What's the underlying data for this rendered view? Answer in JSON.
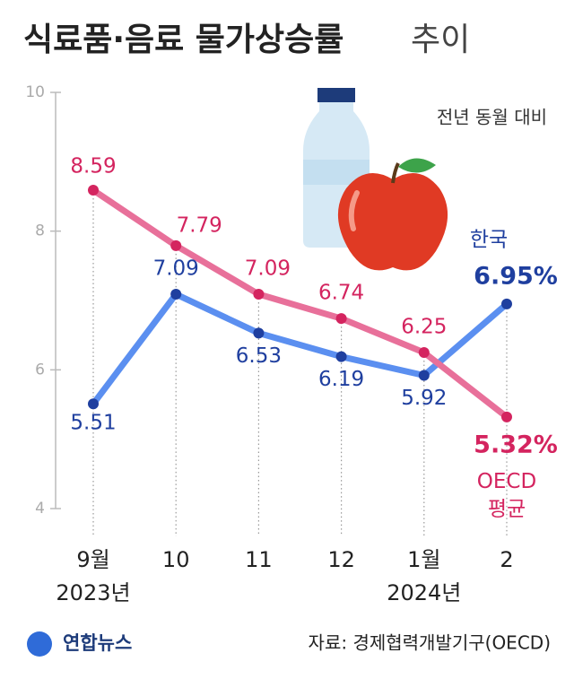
{
  "chart_data": {
    "type": "line",
    "title": "식료품·음료 물가상승률",
    "title_suffix": "추이",
    "subtitle": "전년 동월 대비",
    "categories": [
      "9월",
      "10",
      "11",
      "12",
      "1월",
      "2"
    ],
    "year_labels": [
      "2023년",
      null,
      null,
      null,
      "2024년",
      null
    ],
    "series": [
      {
        "name": "한국",
        "color": "#5b8ff0",
        "label_color": "#1f3f9f",
        "values": [
          5.51,
          7.09,
          6.53,
          6.19,
          5.92,
          6.95
        ],
        "value_labels": [
          "5.51",
          "7.09",
          "6.53",
          "6.19",
          "5.92",
          "6.95%"
        ]
      },
      {
        "name": "OECD 평균",
        "color": "#e8709a",
        "label_color": "#d4245f",
        "values": [
          8.59,
          7.79,
          7.09,
          6.74,
          6.25,
          5.32
        ],
        "value_labels": [
          "8.59",
          "7.79",
          "7.09",
          "6.74",
          "6.25",
          "5.32%"
        ]
      }
    ],
    "ylim": [
      4,
      10
    ],
    "yticks": [
      4,
      6,
      8,
      10
    ],
    "source": "자료: 경제협력개발기구(OECD)",
    "logo": "연합뉴스"
  }
}
